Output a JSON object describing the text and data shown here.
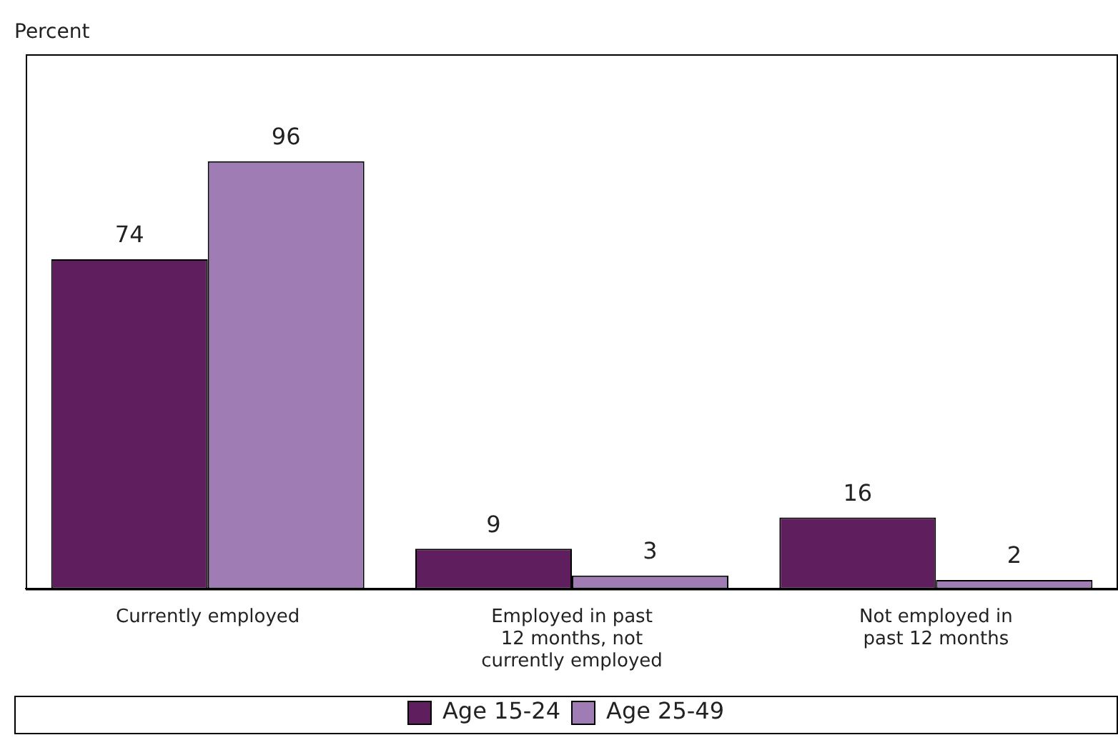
{
  "chart_data": {
    "type": "bar",
    "ylabel": "Percent",
    "categories": [
      "Currently employed",
      "Employed in past 12 months, not currently employed",
      "Not employed in past 12 months"
    ],
    "series": [
      {
        "name": "Age 15-24",
        "color": "#5f1f5f",
        "values": [
          74,
          9,
          16
        ]
      },
      {
        "name": "Age 25-49",
        "color": "#a07cb4",
        "values": [
          96,
          3,
          2
        ]
      }
    ],
    "ylim": [
      0,
      120
    ],
    "data_labels": true,
    "legend": "bottom",
    "grid": false,
    "tick_labels": "x"
  }
}
